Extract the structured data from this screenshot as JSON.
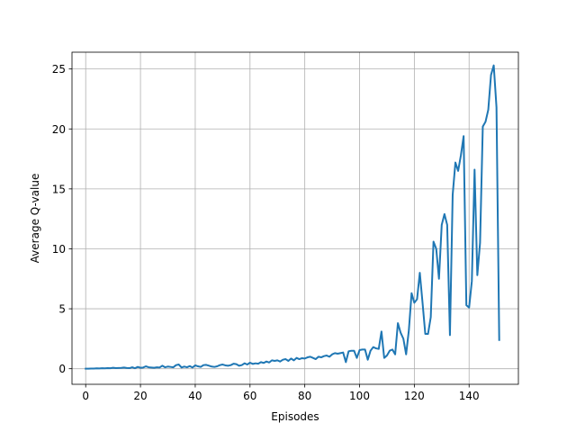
{
  "chart_data": {
    "type": "line",
    "title": "",
    "xlabel": "Episodes",
    "ylabel": "Average Q-value",
    "xlim": [
      -5,
      158
    ],
    "ylim": [
      -1.3,
      26.4
    ],
    "xticks": [
      0,
      20,
      40,
      60,
      80,
      100,
      120,
      140
    ],
    "yticks": [
      0,
      5,
      10,
      15,
      20,
      25
    ],
    "grid": true,
    "line_color": "#1f77b4",
    "series": [
      {
        "name": "",
        "x": [
          0,
          1,
          2,
          3,
          4,
          5,
          6,
          7,
          8,
          9,
          10,
          11,
          12,
          13,
          14,
          15,
          16,
          17,
          18,
          19,
          20,
          21,
          22,
          23,
          24,
          25,
          26,
          27,
          28,
          29,
          30,
          31,
          32,
          33,
          34,
          35,
          36,
          37,
          38,
          39,
          40,
          41,
          42,
          43,
          44,
          45,
          46,
          47,
          48,
          49,
          50,
          51,
          52,
          53,
          54,
          55,
          56,
          57,
          58,
          59,
          60,
          61,
          62,
          63,
          64,
          65,
          66,
          67,
          68,
          69,
          70,
          71,
          72,
          73,
          74,
          75,
          76,
          77,
          78,
          79,
          80,
          81,
          82,
          83,
          84,
          85,
          86,
          87,
          88,
          89,
          90,
          91,
          92,
          93,
          94,
          95,
          96,
          97,
          98,
          99,
          100,
          101,
          102,
          103,
          104,
          105,
          106,
          107,
          108,
          109,
          110,
          111,
          112,
          113,
          114,
          115,
          116,
          117,
          118,
          119,
          120,
          121,
          122,
          123,
          124,
          125,
          126,
          127,
          128,
          129,
          130,
          131,
          132,
          133,
          134,
          135,
          136,
          137,
          138,
          139,
          140,
          141,
          142,
          143,
          144,
          145,
          146,
          147,
          148,
          149,
          150,
          151
        ],
        "values": [
          0.0,
          0.0,
          0.01,
          0.01,
          0.03,
          0.02,
          0.04,
          0.03,
          0.05,
          0.04,
          0.08,
          0.05,
          0.06,
          0.07,
          0.1,
          0.06,
          0.05,
          0.12,
          0.04,
          0.15,
          0.08,
          0.1,
          0.2,
          0.12,
          0.1,
          0.08,
          0.12,
          0.1,
          0.25,
          0.12,
          0.18,
          0.15,
          0.12,
          0.3,
          0.35,
          0.1,
          0.18,
          0.12,
          0.22,
          0.1,
          0.28,
          0.2,
          0.15,
          0.3,
          0.32,
          0.25,
          0.18,
          0.15,
          0.2,
          0.3,
          0.35,
          0.28,
          0.25,
          0.3,
          0.42,
          0.38,
          0.25,
          0.3,
          0.45,
          0.35,
          0.5,
          0.4,
          0.45,
          0.42,
          0.55,
          0.48,
          0.6,
          0.52,
          0.7,
          0.65,
          0.7,
          0.6,
          0.75,
          0.8,
          0.65,
          0.85,
          0.7,
          0.9,
          0.8,
          0.88,
          0.85,
          0.95,
          1.0,
          0.9,
          0.8,
          1.0,
          0.95,
          1.05,
          1.1,
          1.0,
          1.2,
          1.3,
          1.25,
          1.3,
          1.35,
          0.55,
          1.45,
          1.5,
          1.5,
          0.9,
          1.55,
          1.6,
          1.6,
          0.75,
          1.5,
          1.8,
          1.7,
          1.65,
          3.1,
          0.9,
          1.1,
          1.5,
          1.6,
          1.2,
          3.8,
          3.0,
          2.5,
          1.2,
          3.2,
          6.3,
          5.5,
          5.8,
          8.0,
          5.5,
          2.9,
          2.9,
          4.3,
          10.6,
          10.0,
          7.5,
          12.0,
          12.9,
          12.0,
          2.8,
          14.5,
          17.2,
          16.5,
          17.8,
          19.4,
          5.3,
          5.1,
          7.3,
          16.6,
          7.8,
          10.5,
          20.2,
          20.6,
          21.6,
          24.5,
          25.3,
          21.8,
          2.4
        ]
      }
    ]
  }
}
